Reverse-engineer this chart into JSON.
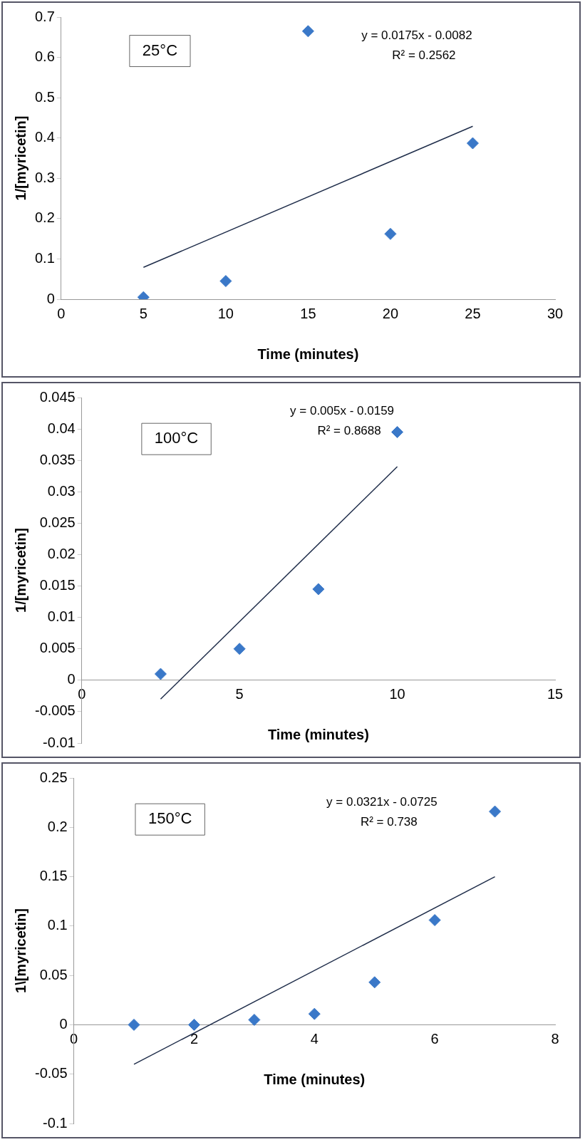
{
  "chart_data": [
    {
      "type": "scatter",
      "xlabel": "Time (minutes)",
      "ylabel": "1/[myricetin]",
      "xlim": [
        0,
        30
      ],
      "ylim": [
        0,
        0.7
      ],
      "xticks": [
        0,
        5,
        10,
        15,
        20,
        25,
        30
      ],
      "yticks": [
        0,
        0.1,
        0.2,
        0.3,
        0.4,
        0.5,
        0.6,
        0.7
      ],
      "grid": false,
      "legend": false,
      "annotations": [
        "25°C",
        "y = 0.0175x - 0.0082",
        "R² = 0.2562"
      ],
      "series": [
        {
          "marker": "diamond",
          "color": "#3a78c8",
          "x": [
            5,
            10,
            15,
            20,
            25
          ],
          "values": [
            0.005,
            0.045,
            0.665,
            0.162,
            0.387
          ]
        },
        {
          "type": "line",
          "marker": "none",
          "color": "#1f2d4a",
          "x": [
            5,
            25
          ],
          "values": [
            0.079,
            0.429
          ]
        }
      ]
    },
    {
      "type": "scatter",
      "xlabel": "Time (minutes)",
      "ylabel": "1/[myricetin]",
      "xlim": [
        0,
        15
      ],
      "ylim": [
        -0.01,
        0.045
      ],
      "xticks": [
        0,
        5,
        10,
        15
      ],
      "yticks": [
        -0.01,
        -0.005,
        0,
        0.005,
        0.01,
        0.015,
        0.02,
        0.025,
        0.03,
        0.035,
        0.04,
        0.045
      ],
      "grid": false,
      "legend": false,
      "annotations": [
        "100°C",
        "y = 0.005x - 0.0159",
        "R² = 0.8688"
      ],
      "series": [
        {
          "marker": "diamond",
          "color": "#3a78c8",
          "x": [
            2.5,
            5,
            7.5,
            10
          ],
          "values": [
            0.001,
            0.005,
            0.0145,
            0.0395
          ]
        },
        {
          "type": "line",
          "marker": "none",
          "color": "#1f2d4a",
          "x": [
            2.5,
            10
          ],
          "values": [
            -0.003,
            0.034
          ]
        }
      ]
    },
    {
      "type": "scatter",
      "xlabel": "Time (minutes)",
      "ylabel": "1\\[myricetin]",
      "xlim": [
        0,
        8
      ],
      "ylim": [
        -0.1,
        0.25
      ],
      "xticks": [
        0,
        2,
        4,
        6,
        8
      ],
      "yticks": [
        -0.1,
        -0.05,
        0,
        0.05,
        0.1,
        0.15,
        0.2,
        0.25
      ],
      "grid": false,
      "legend": false,
      "annotations": [
        "150°C",
        "y = 0.0321x - 0.0725",
        "R² = 0.738"
      ],
      "series": [
        {
          "marker": "diamond",
          "color": "#3a78c8",
          "x": [
            1,
            2,
            3,
            4,
            5,
            6,
            7
          ],
          "values": [
            0,
            0,
            0.005,
            0.011,
            0.043,
            0.106,
            0.216
          ]
        },
        {
          "type": "line",
          "marker": "none",
          "color": "#1f2d4a",
          "x": [
            1,
            7
          ],
          "values": [
            -0.04,
            0.15
          ]
        }
      ]
    }
  ]
}
